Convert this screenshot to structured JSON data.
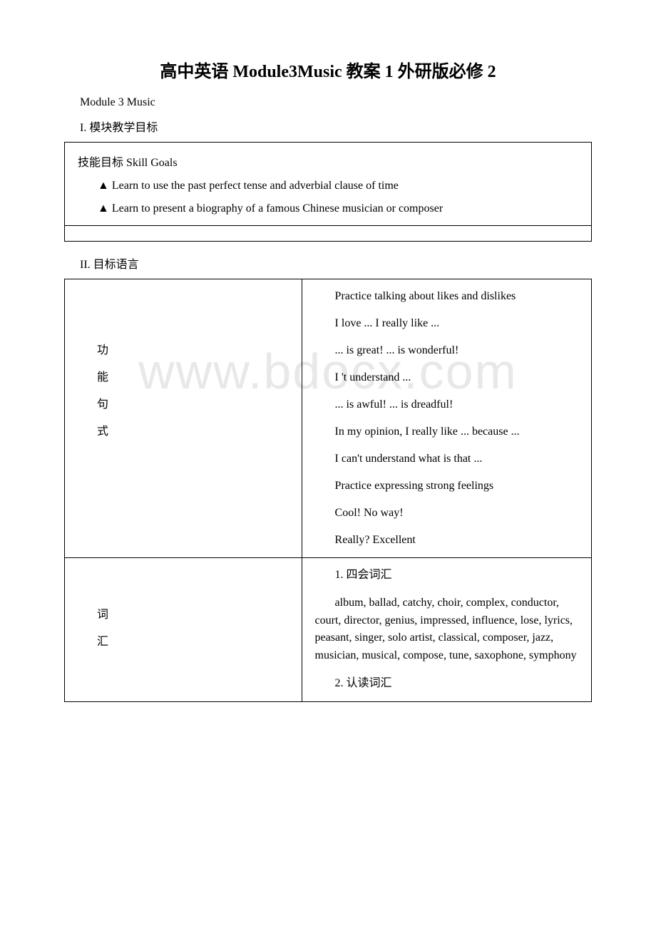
{
  "watermark": "www.bdocx.com",
  "title": "高中英语 Module3Music 教案 1 外研版必修 2",
  "subtitle": "Module 3 Music",
  "section1_heading": "I. 模块教学目标",
  "goals": {
    "heading": "技能目标 Skill Goals",
    "items": [
      "▲ Learn to use the past perfect tense and adverbial clause of time",
      "▲ Learn to present a biography of a famous Chinese musician or composer"
    ]
  },
  "section2_heading": "II. 目标语言",
  "rows": [
    {
      "left_chars": [
        "功",
        "能",
        "句",
        "式"
      ],
      "right_lines": [
        "Practice talking about likes and dislikes",
        "I love ... I really like ...",
        "... is great! ... is wonderful!",
        "I 't understand ...",
        "... is awful! ... is dreadful!",
        "In my opinion, I really like ... because ...",
        "I can't understand what is that ...",
        "Practice expressing strong feelings",
        "Cool! No way!",
        "Really? Excellent"
      ]
    },
    {
      "left_chars": [
        "词",
        "汇"
      ],
      "right_sections": [
        {
          "heading": "1. 四会词汇",
          "body": "album, ballad, catchy, choir, complex, conductor, court, director, genius, impressed, influence, lose, lyrics, peasant, singer, solo artist, classical, composer, jazz, musician, musical, compose, tune, saxophone, symphony"
        },
        {
          "heading": "2. 认读词汇",
          "body": ""
        }
      ]
    }
  ]
}
